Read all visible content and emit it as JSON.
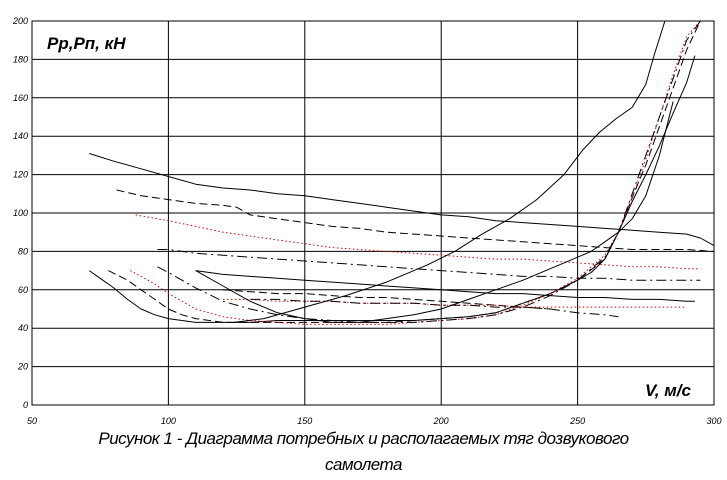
{
  "chart_data": {
    "type": "line",
    "ylabel": "Pp,Pп, кН",
    "xlabel": "V, м/с",
    "xlim": [
      50,
      300
    ],
    "ylim": [
      0,
      200
    ],
    "xticks": [
      50,
      100,
      150,
      200,
      250,
      300
    ],
    "yticks": [
      0,
      20,
      40,
      60,
      80,
      100,
      120,
      140,
      160,
      180,
      200
    ],
    "xtick_labels": [
      "50",
      "100",
      "150",
      "200",
      "250",
      "300"
    ],
    "ytick_labels": [
      "0",
      "20",
      "40",
      "60",
      "80",
      "100",
      "120",
      "140",
      "160",
      "180",
      "200"
    ],
    "grid": true,
    "series": [
      {
        "color": "#000000",
        "dash": "solid",
        "x": [
          71,
          80,
          90,
          100,
          110,
          120,
          130,
          140,
          150,
          160,
          170,
          180,
          190,
          200,
          210,
          220,
          230,
          240,
          250,
          260,
          270,
          280,
          290,
          295,
          300
        ],
        "y": [
          131,
          127,
          123,
          119,
          115,
          113,
          112,
          110,
          109,
          107,
          105,
          103,
          101,
          99,
          98,
          96,
          95,
          94,
          93,
          92,
          91,
          90,
          89,
          87,
          83
        ]
      },
      {
        "color": "#000000",
        "dash": "8,4",
        "x": [
          81,
          90,
          100,
          110,
          120,
          125,
          130,
          140,
          150,
          160,
          170,
          180,
          190,
          200,
          210,
          220,
          230,
          240,
          250,
          260,
          270,
          280,
          290,
          300
        ],
        "y": [
          112,
          109,
          107,
          105,
          104,
          103,
          99,
          97,
          95,
          93,
          92,
          90,
          89,
          88,
          87,
          86,
          85,
          84,
          83,
          82,
          81,
          81,
          81,
          80
        ]
      },
      {
        "color": "#e00000",
        "dash": "1.5,2.5",
        "x": [
          88,
          100,
          110,
          120,
          130,
          140,
          150,
          160,
          170,
          180,
          190,
          200,
          210,
          220,
          230,
          240,
          250,
          260,
          270,
          280,
          290,
          295
        ],
        "y": [
          99,
          96,
          93,
          90,
          88,
          86,
          84,
          82,
          81,
          80,
          79,
          78,
          77,
          76,
          76,
          75,
          74,
          73,
          72,
          72,
          71,
          71
        ]
      },
      {
        "color": "#000000",
        "dash": "10,4,2,4",
        "x": [
          96,
          100,
          110,
          120,
          130,
          140,
          150,
          160,
          170,
          180,
          190,
          200,
          210,
          220,
          230,
          240,
          250,
          260,
          270,
          280,
          290,
          295
        ],
        "y": [
          81,
          81,
          79,
          78,
          77,
          76,
          75,
          74,
          73,
          72,
          71,
          70,
          69,
          68,
          67,
          67,
          66,
          66,
          65,
          65,
          65,
          65
        ]
      },
      {
        "color": "#000000",
        "dash": "solid",
        "x": [
          71,
          75,
          80,
          85,
          90,
          95,
          100,
          105,
          110,
          115,
          120,
          130,
          140,
          150,
          160,
          170,
          180,
          190,
          200,
          210,
          220,
          230,
          240,
          250,
          255,
          260,
          265,
          270,
          275,
          280,
          285,
          290,
          293
        ],
        "y": [
          70,
          66,
          61,
          55,
          50,
          47,
          45,
          44,
          43,
          43,
          43,
          43,
          44,
          44,
          44,
          44,
          44,
          44,
          45,
          46,
          48,
          53,
          58,
          65,
          69,
          76,
          90,
          106,
          120,
          135,
          152,
          168,
          182
        ]
      },
      {
        "color": "#000000",
        "dash": "8,4",
        "x": [
          78,
          85,
          90,
          95,
          100,
          105,
          110,
          120,
          130,
          140,
          150,
          160,
          170,
          180,
          190,
          200,
          210,
          220,
          230,
          240,
          250,
          260,
          265,
          270,
          275,
          280,
          285,
          290,
          295
        ],
        "y": [
          70,
          65,
          60,
          55,
          50,
          47,
          45,
          43,
          43,
          43,
          43,
          43,
          43,
          43,
          44,
          45,
          46,
          48,
          53,
          58,
          65,
          76,
          90,
          108,
          125,
          145,
          165,
          185,
          200
        ]
      },
      {
        "color": "#e00000",
        "dash": "1.5,2.5",
        "x": [
          86,
          90,
          95,
          100,
          105,
          110,
          120,
          130,
          140,
          150,
          160,
          170,
          180,
          190,
          200,
          210,
          220,
          230,
          240,
          250,
          260,
          265,
          270,
          275,
          280,
          285,
          290,
          295
        ],
        "y": [
          70,
          67,
          63,
          58,
          54,
          50,
          46,
          44,
          43,
          42,
          42,
          42,
          42,
          43,
          44,
          45,
          47,
          52,
          58,
          66,
          78,
          90,
          108,
          128,
          150,
          172,
          192,
          200
        ]
      },
      {
        "color": "#000000",
        "dash": "10,4,2,4",
        "x": [
          96,
          100,
          105,
          110,
          120,
          130,
          140,
          150,
          160,
          170,
          180,
          190,
          200,
          210,
          220,
          230,
          240,
          250,
          260,
          265,
          270,
          275,
          280,
          285,
          290,
          295
        ],
        "y": [
          72,
          69,
          65,
          61,
          54,
          50,
          47,
          45,
          44,
          43,
          43,
          43,
          44,
          45,
          47,
          51,
          57,
          65,
          77,
          90,
          110,
          130,
          150,
          170,
          190,
          200
        ]
      },
      {
        "color": "#000000",
        "dash": "solid",
        "x": [
          110,
          120,
          130,
          140,
          150,
          160,
          170,
          180,
          190,
          200,
          210,
          220,
          230,
          240,
          250,
          260,
          270,
          280,
          290,
          293
        ],
        "y": [
          70,
          68,
          67,
          66,
          65,
          64,
          63,
          62,
          61,
          60,
          59,
          58,
          58,
          57,
          56,
          56,
          55,
          55,
          54,
          54
        ]
      },
      {
        "color": "#000000",
        "dash": "8,4",
        "x": [
          120,
          130,
          140,
          150,
          160,
          170,
          180,
          190,
          200,
          210,
          220,
          230,
          240
        ],
        "y": [
          60,
          59,
          58,
          58,
          57,
          56,
          56,
          55,
          54,
          53,
          52,
          51,
          50
        ]
      },
      {
        "color": "#e00000",
        "dash": "1.5,2.5",
        "x": [
          120,
          130,
          140,
          150,
          160,
          170,
          180,
          190,
          200,
          210,
          220,
          230,
          240,
          250,
          260,
          270,
          280,
          290
        ],
        "y": [
          55,
          55,
          54,
          54,
          54,
          53,
          53,
          53,
          52,
          52,
          52,
          51,
          51,
          51,
          51,
          51,
          51,
          51
        ]
      },
      {
        "color": "#000000",
        "dash": "10,4,2,4",
        "x": [
          130,
          140,
          150,
          160,
          170,
          180,
          190,
          200,
          210,
          220,
          230,
          240,
          250,
          260,
          265
        ],
        "y": [
          55,
          55,
          54,
          54,
          53,
          53,
          53,
          52,
          52,
          51,
          51,
          50,
          48,
          47,
          46
        ]
      },
      {
        "color": "#000000",
        "dash": "solid",
        "x": [
          110,
          120,
          130,
          140,
          150,
          160,
          170,
          180,
          190,
          200,
          210,
          220,
          230,
          240,
          250,
          255,
          260,
          265,
          270,
          275,
          280,
          285
        ],
        "y": [
          70,
          62,
          54,
          48,
          45,
          43,
          43,
          45,
          47,
          50,
          55,
          60,
          65,
          71,
          77,
          80,
          85,
          90,
          97,
          109,
          130,
          158
        ]
      },
      {
        "color": "#000000",
        "dash": "solid",
        "x": [
          124,
          135,
          150,
          165,
          180,
          195,
          205,
          215,
          225,
          235,
          245,
          252,
          258,
          264,
          270,
          275,
          278,
          282
        ],
        "y": [
          43,
          45,
          51,
          57,
          64,
          73,
          80,
          89,
          97,
          107,
          120,
          133,
          142,
          149,
          155,
          167,
          182,
          200
        ]
      }
    ]
  },
  "caption": {
    "line1": "Рисунок 1 - Диаграмма потребных и располагаемых тяг дозвукового",
    "line2": "самолета"
  }
}
